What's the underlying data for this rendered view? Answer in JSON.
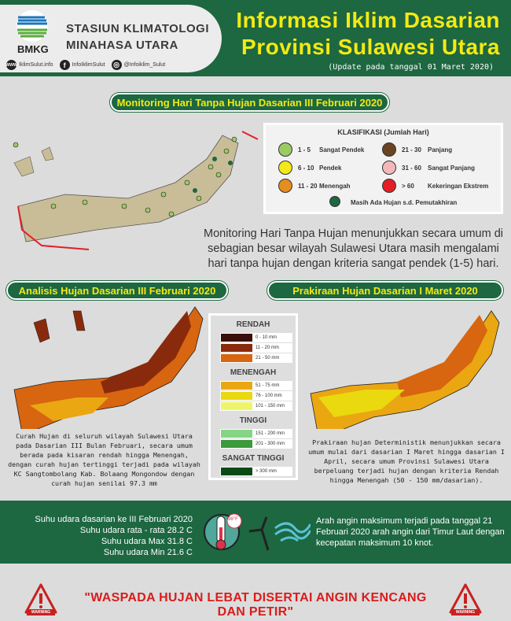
{
  "header": {
    "org_line1": "STASIUN KLIMATOLOGI",
    "org_line2": "MINAHASA UTARA",
    "logo_text": "BMKG",
    "website": "IklimSulut.info",
    "facebook": "InfoIklimSulut",
    "instagram": "@Infoiklim_Sulut",
    "title_line1": "Informasi Iklim Dasarian",
    "title_line2": "Provinsi Sulawesi Utara",
    "update": "(Update pada tanggal 01 Maret 2020)"
  },
  "monitoring": {
    "banner": "Monitoring Hari Tanpa Hujan Dasarian III Februari 2020",
    "legend_title": "KLASIFIKASI (Jumlah Hari)",
    "classes": [
      {
        "range": "1 - 5",
        "label": "Sangat Pendek",
        "color": "#9ccb64"
      },
      {
        "range": "6 - 10",
        "label": "Pendek",
        "color": "#f3e81a"
      },
      {
        "range": "11 - 20",
        "label": "Menengah",
        "color": "#e58d1e"
      },
      {
        "range": "21 - 30",
        "label": "Panjang",
        "color": "#6b4423"
      },
      {
        "range": "31 - 60",
        "label": "Sangat Panjang",
        "color": "#f4b8b8"
      },
      {
        "range": "> 60",
        "label": "Kekeringan Ekstrem",
        "color": "#e21f26"
      }
    ],
    "rain_label": "Masih Ada Hujan s.d. Pemutakhiran",
    "rain_color": "#1d6741",
    "summary": "Monitoring Hari Tanpa Hujan menunjukkan secara umum di sebagian besar wilayah Sulawesi Utara masih mengalami hari tanpa hujan dengan kriteria sangat pendek (1-5) hari."
  },
  "analysis": {
    "banner": "Analisis Hujan Dasarian III Februari 2020",
    "text": "Curah Hujan di seluruh wilayah Sulawesi Utara pada Dasarian III Bulan Februari, secara umum berada pada kisaran rendah hingga Menengah, dengan curah hujan tertinggi terjadi pada wilayah KC Sangtombolang Kab. Bolaang Mongondow dengan curah hujan senilai 97.3 mm"
  },
  "forecast": {
    "banner": "Prakiraan Hujan Dasarian I Maret 2020",
    "text": "Prakiraan hujan Deterministik menunjukkan secara umum mulai dari dasarian I Maret hingga dasarian I April, secara umum Provinsi Sulawesi Utara berpeluang terjadi hujan dengan kriteria Rendah hingga Menengah (50 - 150 mm/dasarian)."
  },
  "rain_legend": {
    "groups": [
      {
        "name": "RENDAH",
        "items": [
          {
            "label": "0 - 10 mm",
            "color": "#3a0e0a"
          },
          {
            "label": "11 - 20 mm",
            "color": "#8a2a0c"
          },
          {
            "label": "21 - 50 mm",
            "color": "#d8650f"
          }
        ]
      },
      {
        "name": "MENENGAH",
        "items": [
          {
            "label": "51 - 75 mm",
            "color": "#eaa712"
          },
          {
            "label": "76 - 100 mm",
            "color": "#e9d90e"
          },
          {
            "label": "101 - 150 mm",
            "color": "#eef56a"
          }
        ]
      },
      {
        "name": "TINGGI",
        "items": [
          {
            "label": "151 - 200 mm",
            "color": "#86d486"
          },
          {
            "label": "201 - 300 mm",
            "color": "#3b9a3b"
          }
        ]
      },
      {
        "name": "SANGAT TINGGI",
        "items": [
          {
            "label": "> 300 mm",
            "color": "#0b4a14"
          }
        ]
      }
    ]
  },
  "weather": {
    "temp_title": "Suhu udara dasarian ke III Februari 2020",
    "temp_avg": "Suhu udara rata - rata 28.2 C",
    "temp_max": "Suhu udara Max 31.8 C",
    "temp_min": "Suhu udara Min 21.6 C",
    "thermo_badge": "98°F",
    "wind_text": "Arah angin maksimum terjadi pada tanggal 21 Februari 2020 arah angin dari Timur Laut dengan kecepatan maksimum 10 knot."
  },
  "warning": {
    "text": "\"WASPADA HUJAN LEBAT DISERTAI ANGIN KENCANG DAN PETIR\"",
    "badge": "WARNING"
  }
}
